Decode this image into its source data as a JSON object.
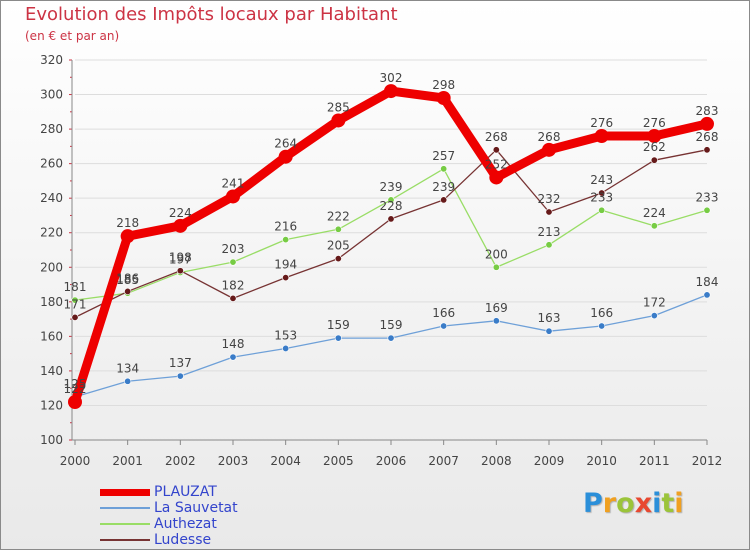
{
  "header": {
    "title": "Evolution des Impôts locaux par Habitant",
    "subtitle": "(en € et par an)"
  },
  "logo": {
    "text": "Proxiti",
    "letters": [
      {
        "ch": "P",
        "color": "#2b8fd9"
      },
      {
        "ch": "r",
        "color": "#f0a020"
      },
      {
        "ch": "o",
        "color": "#9bc43a"
      },
      {
        "ch": "x",
        "color": "#e84830"
      },
      {
        "ch": "i",
        "color": "#2b8fd9"
      },
      {
        "ch": "t",
        "color": "#9bc43a"
      },
      {
        "ch": "i",
        "color": "#f0a020"
      }
    ]
  },
  "colors": {
    "text": "#3344cc",
    "title": "#cc3344",
    "axis": "#888888",
    "grid": "#dddddd",
    "label": "#444444"
  },
  "chart_data": {
    "type": "line",
    "title": "Evolution des Impôts locaux par Habitant",
    "subtitle": "(en € et par an)",
    "xlabel": "",
    "ylabel": "",
    "x": [
      "2000",
      "2001",
      "2002",
      "2003",
      "2004",
      "2005",
      "2006",
      "2007",
      "2008",
      "2009",
      "2010",
      "2011",
      "2012"
    ],
    "ylim": [
      100,
      320
    ],
    "yticks": [
      100,
      120,
      140,
      160,
      180,
      200,
      220,
      240,
      260,
      280,
      300,
      320
    ],
    "grid": "horizontal",
    "legend_position": "bottom-left",
    "series": [
      {
        "name": "PLAUZAT",
        "color": "#ee0000",
        "marker_color": "#ee0000",
        "emphasis": "thick",
        "values": [
          122,
          218,
          224,
          241,
          264,
          285,
          302,
          298,
          252,
          268,
          276,
          276,
          283
        ],
        "labels": [
          "122",
          "218",
          "224",
          "241",
          "264",
          "285",
          "302",
          "298",
          "252",
          "268",
          "276",
          "276",
          "283"
        ]
      },
      {
        "name": "La Sauvetat",
        "color": "#6ea0d8",
        "marker_color": "#3a7cc8",
        "emphasis": "thin",
        "values": [
          125,
          134,
          137,
          148,
          153,
          159,
          159,
          166,
          169,
          163,
          166,
          172,
          184
        ],
        "labels": [
          "125",
          "134",
          "137",
          "148",
          "153",
          "159",
          "159",
          "166",
          "169",
          "163",
          "166",
          "172",
          "184"
        ]
      },
      {
        "name": "Authezat",
        "color": "#99dd66",
        "marker_color": "#77cc44",
        "emphasis": "thin",
        "values": [
          181,
          185,
          197,
          203,
          216,
          222,
          239,
          257,
          200,
          213,
          233,
          224,
          233
        ],
        "labels": [
          "181",
          "185",
          "197",
          "203",
          "216",
          "222",
          "239",
          "257",
          "200",
          "213",
          "233",
          "224",
          "233"
        ]
      },
      {
        "name": "Ludesse",
        "color": "#773333",
        "marker_color": "#661a1a",
        "emphasis": "thin",
        "values": [
          171,
          186,
          198,
          182,
          194,
          205,
          228,
          239,
          268,
          232,
          243,
          262,
          268
        ],
        "labels": [
          "171",
          "186",
          "198",
          "182",
          "194",
          "205",
          "228",
          "239",
          "268",
          "232",
          "243",
          "262",
          "268"
        ]
      }
    ]
  }
}
